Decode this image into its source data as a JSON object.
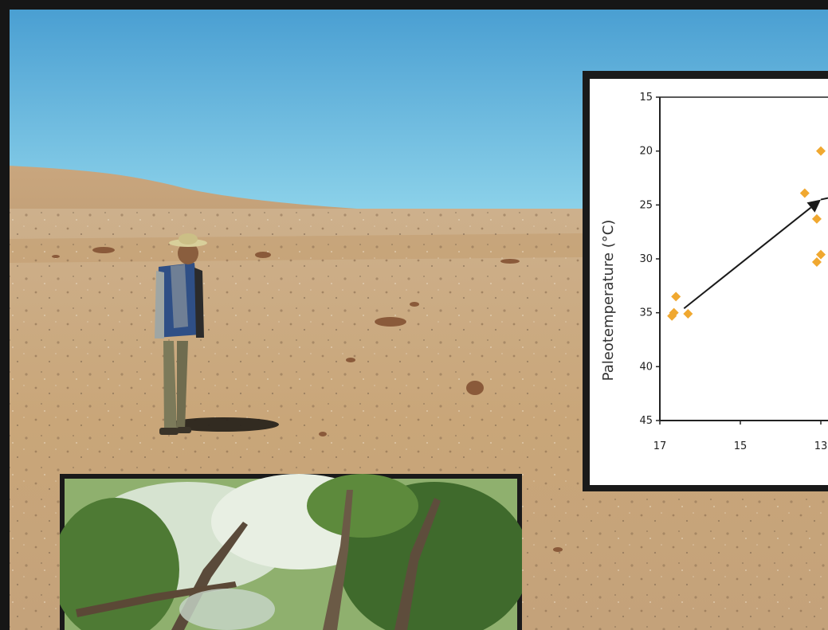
{
  "colors": {
    "sky_top": "#4aa3d6",
    "sky_bottom": "#8fd3ea",
    "desert": "#c9a276",
    "frame": "#161616",
    "marker": "#f0a830",
    "arrow": "#1a1a1a"
  },
  "chart_data": {
    "type": "scatter",
    "ylabel": "Paleotemperature (°C)",
    "xlabel": "",
    "y_axis_inverted": true,
    "x_axis_reversed": true,
    "ylim": [
      45,
      15
    ],
    "xlim": [
      17,
      11
    ],
    "y_ticks": [
      "15",
      "20",
      "25",
      "30",
      "35",
      "40",
      "45"
    ],
    "x_ticks": [
      "17",
      "15",
      "13"
    ],
    "grid": false,
    "points": [
      {
        "x": 16.7,
        "y": 35.3
      },
      {
        "x": 16.65,
        "y": 35.0
      },
      {
        "x": 16.6,
        "y": 33.5
      },
      {
        "x": 16.3,
        "y": 35.1
      },
      {
        "x": 13.4,
        "y": 23.9
      },
      {
        "x": 13.0,
        "y": 20.0
      },
      {
        "x": 13.1,
        "y": 30.3
      },
      {
        "x": 13.0,
        "y": 29.6
      },
      {
        "x": 13.1,
        "y": 26.3
      }
    ],
    "arrow": {
      "from": {
        "x": 16.4,
        "y": 34.6
      },
      "to": {
        "x": 13.0,
        "y": 24.5
      }
    }
  }
}
